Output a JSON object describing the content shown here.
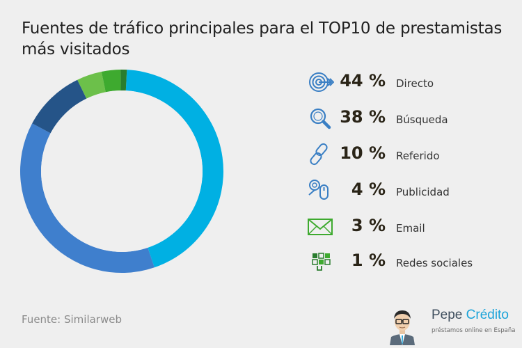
{
  "title": "Fuentes de tráfico principales para el TOP10 de prestamistas más visitados",
  "source": "Fuente: Similarweb",
  "brand": {
    "name_part1": "Pepe",
    "name_part2": "Crédito",
    "tagline": "préstamos online en España"
  },
  "colors": {
    "directo": "#00b0e3",
    "busqueda": "#3f7fcd",
    "referido": "#255488",
    "publicidad": "#6cc04a",
    "email": "#3eaa2f",
    "redes": "#2a7d2e",
    "icon_blue": "#3a7fc4",
    "icon_green": "#3eaa2f"
  },
  "chart_data": {
    "type": "pie",
    "donut": true,
    "title": "Fuentes de tráfico principales para el TOP10 de prestamistas más visitados",
    "categories": [
      "Directo",
      "Búsqueda",
      "Referido",
      "Publicidad",
      "Email",
      "Redes sociales"
    ],
    "values": [
      44,
      38,
      10,
      4,
      3,
      1
    ],
    "unit": "%"
  },
  "legend": [
    {
      "pct": "44 %",
      "label": "Directo",
      "icon": "target-icon"
    },
    {
      "pct": "38 %",
      "label": "Búsqueda",
      "icon": "magnifier-icon"
    },
    {
      "pct": "10 %",
      "label": "Referido",
      "icon": "link-icon"
    },
    {
      "pct": "4 %",
      "label": "Publicidad",
      "icon": "ad-click-icon"
    },
    {
      "pct": "3 %",
      "label": "Email",
      "icon": "envelope-icon"
    },
    {
      "pct": "1 %",
      "label": "Redes sociales",
      "icon": "social-network-icon"
    }
  ]
}
